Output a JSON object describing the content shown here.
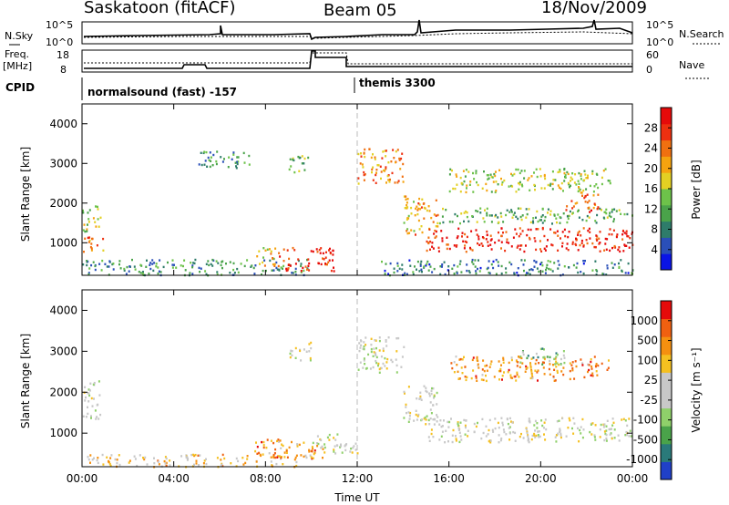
{
  "header": {
    "station": "Saskatoon (fitACF)",
    "beam": "Beam 05",
    "date": "18/Nov/2009"
  },
  "noise_panel": {
    "left_label": "N.Sky",
    "left_ticks": [
      "10^5",
      "10^0"
    ],
    "right_label": "N.Search",
    "right_ticks": [
      "10^5",
      "10^0"
    ]
  },
  "freq_panel": {
    "left_label_1": "Freq.",
    "left_label_2": "[MHz]",
    "left_ticks": [
      "18",
      "8"
    ],
    "right_label": "Nave",
    "right_ticks": [
      "60",
      "0"
    ]
  },
  "cpid_panel": {
    "label": "CPID",
    "programs": [
      "normalsound (fast) -157",
      "themis 3300"
    ]
  },
  "chart_data": [
    {
      "type": "heatmap",
      "name": "power",
      "ylabel": "Slant Range [km]",
      "ylim": [
        180,
        4500
      ],
      "yticks": [
        "1000",
        "2000",
        "3000",
        "4000"
      ],
      "xlim": [
        0,
        24
      ],
      "xticks": [
        "00:00",
        "04:00",
        "08:00",
        "12:00",
        "16:00",
        "20:00",
        "00:00"
      ],
      "colorbar_label": "Power [dB]",
      "colorbar_ticks": [
        "28",
        "24",
        "20",
        "16",
        "12",
        "8",
        "4"
      ],
      "colors": [
        "#0a14e6",
        "#2a4fb8",
        "#2e7c6a",
        "#4aa34a",
        "#6dc24a",
        "#e3d023",
        "#f5a30f",
        "#f07010",
        "#ee3010",
        "#e60a0a"
      ],
      "regions": [
        {
          "t": [
            0.0,
            1.0
          ],
          "r": [
            800,
            1200
          ],
          "level": 0.75
        },
        {
          "t": [
            0.0,
            0.8
          ],
          "r": [
            1300,
            2000
          ],
          "level": 0.5
        },
        {
          "t": [
            0.0,
            10.0
          ],
          "r": [
            200,
            600
          ],
          "level": 0.3
        },
        {
          "t": [
            5.0,
            7.3
          ],
          "r": [
            2900,
            3350
          ],
          "level": 0.3
        },
        {
          "t": [
            9.0,
            10.0
          ],
          "r": [
            2800,
            3250
          ],
          "level": 0.4
        },
        {
          "t": [
            7.5,
            8.5
          ],
          "r": [
            400,
            900
          ],
          "level": 0.6
        },
        {
          "t": [
            8.5,
            11.0
          ],
          "r": [
            300,
            900
          ],
          "level": 0.9
        },
        {
          "t": [
            12.0,
            14.0
          ],
          "r": [
            2500,
            3400
          ],
          "level": 0.7
        },
        {
          "t": [
            14.0,
            15.5
          ],
          "r": [
            1200,
            2200
          ],
          "level": 0.65
        },
        {
          "t": [
            15.0,
            24.0
          ],
          "r": [
            800,
            1400
          ],
          "level": 0.9
        },
        {
          "t": [
            15.5,
            24.0
          ],
          "r": [
            1500,
            1900
          ],
          "level": 0.4
        },
        {
          "t": [
            16.0,
            23.0
          ],
          "r": [
            2300,
            2900
          ],
          "level": 0.5
        },
        {
          "t": [
            21.0,
            22.5
          ],
          "r": [
            1800,
            2300
          ],
          "level": 0.8
        },
        {
          "t": [
            13.0,
            24.0
          ],
          "r": [
            200,
            600
          ],
          "level": 0.25
        }
      ]
    },
    {
      "type": "heatmap",
      "name": "velocity",
      "ylabel": "Slant Range [km]",
      "ylim": [
        180,
        4500
      ],
      "yticks": [
        "1000",
        "2000",
        "3000",
        "4000"
      ],
      "xlim": [
        0,
        24
      ],
      "xticks": [
        "00:00",
        "04:00",
        "08:00",
        "12:00",
        "16:00",
        "20:00",
        "00:00"
      ],
      "xlabel": "Time UT",
      "colorbar_label": "Velocity [m s⁻¹]",
      "colorbar_ticks": [
        "1000",
        "500",
        "100",
        "25",
        "-25",
        "-100",
        "-500",
        "-1000"
      ],
      "colors": [
        "#2040c8",
        "#2a7a7a",
        "#4aa34a",
        "#8fd06a",
        "#c8c8c8",
        "#c8c8c8",
        "#f5c020",
        "#f59010",
        "#f06010",
        "#e60a0a"
      ],
      "regions": [
        {
          "t": [
            0.0,
            0.8
          ],
          "r": [
            1300,
            2300
          ],
          "level": 0.5
        },
        {
          "t": [
            0.0,
            10.0
          ],
          "r": [
            200,
            500
          ],
          "level": 0.65
        },
        {
          "t": [
            9.0,
            10.0
          ],
          "r": [
            2800,
            3250
          ],
          "level": 0.5
        },
        {
          "t": [
            7.5,
            10.5
          ],
          "r": [
            400,
            900
          ],
          "level": 0.75
        },
        {
          "t": [
            10.0,
            12.0
          ],
          "r": [
            500,
            1000
          ],
          "level": 0.5
        },
        {
          "t": [
            12.0,
            14.0
          ],
          "r": [
            2500,
            3400
          ],
          "level": 0.5
        },
        {
          "t": [
            14.0,
            15.5
          ],
          "r": [
            1200,
            2200
          ],
          "level": 0.5
        },
        {
          "t": [
            15.0,
            24.0
          ],
          "r": [
            800,
            1400
          ],
          "level": 0.5
        },
        {
          "t": [
            16.0,
            23.0
          ],
          "r": [
            2300,
            2900
          ],
          "level": 0.75
        },
        {
          "t": [
            19.0,
            21.0
          ],
          "r": [
            2700,
            3100
          ],
          "level": 0.3
        }
      ]
    }
  ]
}
